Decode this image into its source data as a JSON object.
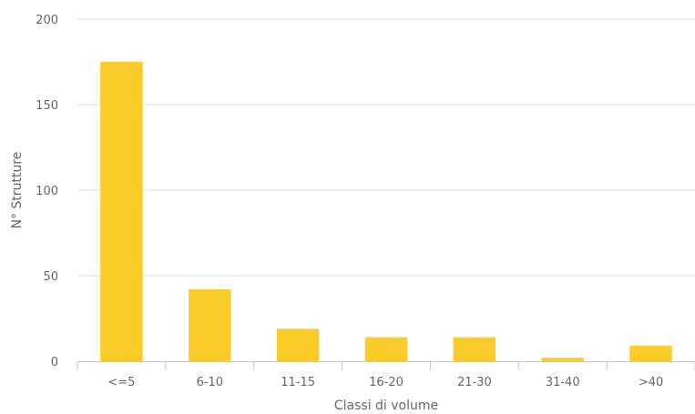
{
  "chart_data": {
    "type": "bar",
    "categories": [
      "<=5",
      "6-10",
      "11-15",
      "16-20",
      "21-30",
      "31-40",
      ">40"
    ],
    "values": [
      175,
      42,
      19,
      14,
      14,
      2,
      9
    ],
    "title": "",
    "xlabel": "Classi di volume",
    "ylabel": "N° Strutture",
    "ylim": [
      0,
      200
    ],
    "yticks": [
      0,
      50,
      100,
      150,
      200
    ],
    "grid": true,
    "legend": "none",
    "bar_color": "#f9cc2a"
  }
}
